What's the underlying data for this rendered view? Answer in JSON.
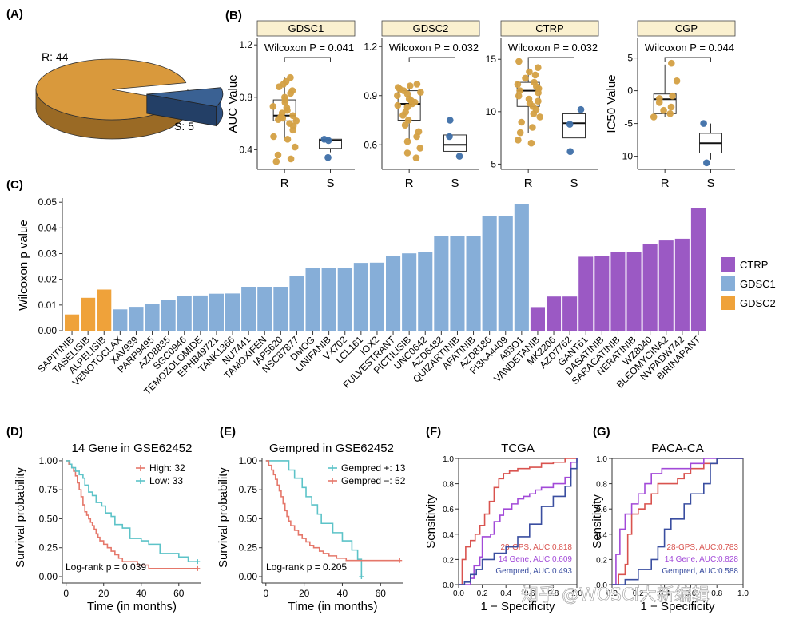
{
  "colors": {
    "R": "#D4A043",
    "S": "#3E6FA8",
    "CTRP": "#9B59C4",
    "GDSC1": "#86AED8",
    "GDSC2": "#EFA23A",
    "pie_R": "#D9993C",
    "pie_S": "#3A6193",
    "km_red": "#E5776A",
    "km_teal": "#5CC3C8",
    "roc_red": "#D9534F",
    "roc_purple": "#A24AD8",
    "roc_blue": "#3A4EA0",
    "strip": "#FAF0CF"
  },
  "panels": {
    "A": "(A)",
    "B": "(B)",
    "C": "(C)",
    "D": "(D)",
    "E": "(E)",
    "F": "(F)",
    "G": "(G)"
  },
  "watermark": "知乎 @WOSCI大新编辑",
  "chart_data": [
    {
      "id": "pie",
      "type": "pie",
      "slices": [
        {
          "label": "R: 44",
          "value": 44
        },
        {
          "label": "S: 5",
          "value": 5
        }
      ]
    },
    {
      "id": "gdsc1",
      "type": "box",
      "strip": "GDSC1",
      "ylabel": "AUC Value",
      "ylim": [
        0.25,
        1.25
      ],
      "yticks": [
        0.4,
        0.8,
        1.2
      ],
      "ytick_labels": [
        "0.4",
        "0.8",
        "1.2"
      ],
      "categories": [
        "R",
        "S"
      ],
      "pvalue": "Wilcoxon P = 0.041",
      "box": {
        "R": [
          0.48,
          0.62,
          0.66,
          0.78,
          0.95
        ],
        "S": [
          0.38,
          0.41,
          0.47,
          0.48,
          0.48
        ]
      },
      "points": {
        "R": [
          0.95,
          0.92,
          0.9,
          0.88,
          0.85,
          0.83,
          0.8,
          0.78,
          0.76,
          0.73,
          0.72,
          0.7,
          0.68,
          0.66,
          0.65,
          0.64,
          0.63,
          0.62,
          0.6,
          0.58,
          0.55,
          0.5,
          0.48,
          0.42,
          0.36,
          0.33,
          0.31
        ],
        "S": [
          0.48,
          0.47,
          0.34
        ]
      }
    },
    {
      "id": "gdsc2",
      "type": "box",
      "strip": "GDSC2",
      "ylabel": "",
      "ylim": [
        0.45,
        1.25
      ],
      "yticks": [
        0.6,
        0.9,
        1.2
      ],
      "ytick_labels": [
        "0.6",
        "0.9",
        "1.2"
      ],
      "categories": [
        "R",
        "S"
      ],
      "pvalue": "Wilcoxon P = 0.032",
      "box": {
        "R": [
          0.62,
          0.75,
          0.85,
          0.93,
          0.97
        ],
        "S": [
          0.53,
          0.56,
          0.6,
          0.66,
          0.75
        ]
      },
      "points": {
        "R": [
          0.97,
          0.96,
          0.95,
          0.94,
          0.93,
          0.92,
          0.91,
          0.9,
          0.88,
          0.87,
          0.86,
          0.85,
          0.84,
          0.83,
          0.8,
          0.78,
          0.75,
          0.72,
          0.68,
          0.65,
          0.62,
          0.58,
          0.55,
          0.52
        ],
        "S": [
          0.75,
          0.65,
          0.53
        ]
      }
    },
    {
      "id": "ctrp",
      "type": "box",
      "strip": "CTRP",
      "ylabel": "",
      "ylim": [
        4.5,
        17
      ],
      "yticks": [
        5,
        10,
        15
      ],
      "ytick_labels": [
        "5",
        "10",
        "15"
      ],
      "categories": [
        "R",
        "S"
      ],
      "pvalue": "Wilcoxon P = 0.032",
      "box": {
        "R": [
          8.0,
          10.5,
          12.0,
          12.8,
          14.8
        ],
        "S": [
          6.5,
          7.5,
          8.9,
          9.8,
          10.2
        ]
      },
      "points": {
        "R": [
          14.8,
          14.2,
          13.8,
          13.5,
          13.2,
          12.8,
          12.6,
          12.4,
          12.2,
          12.0,
          11.8,
          11.5,
          11.2,
          11.0,
          10.8,
          10.5,
          10.2,
          9.8,
          9.5,
          9.0,
          8.5,
          8.0,
          7.3,
          7.0
        ],
        "S": [
          10.2,
          8.8,
          6.2
        ]
      }
    },
    {
      "id": "cgp",
      "type": "box",
      "strip": "CGP",
      "ylabel": "IC50 Value",
      "ylim": [
        -12,
        8
      ],
      "yticks": [
        -10,
        -5,
        0,
        5
      ],
      "ytick_labels": [
        "-10",
        "-5",
        "0",
        "5"
      ],
      "categories": [
        "R",
        "S"
      ],
      "pvalue": "Wilcoxon P = 0.044",
      "box": {
        "R": [
          -4,
          -3.5,
          -1.3,
          -0.5,
          4
        ],
        "S": [
          -10.5,
          -9.5,
          -8,
          -6.5,
          -5
        ]
      },
      "points": {
        "R": [
          4.2,
          1.5,
          -0.8,
          -1.2,
          -1.8,
          -2.5,
          -3.0,
          -3.5,
          -4.0
        ],
        "S": [
          -5.0,
          -11.0
        ]
      }
    },
    {
      "id": "bars",
      "type": "bar",
      "ylabel": "Wilcoxon p value",
      "ylim": [
        0,
        0.051
      ],
      "yticks": [
        0,
        0.01,
        0.02,
        0.03,
        0.04,
        0.05
      ],
      "ytick_labels": [
        "0.00",
        "0.01",
        "0.02",
        "0.03",
        "0.04",
        "0.05"
      ],
      "legend": [
        "CTRP",
        "GDSC1",
        "GDSC2"
      ],
      "categories": [
        "SAPITINIB",
        "TASELISIB",
        "ALPELISIB",
        "VENOTOCLAX",
        "XAV939",
        "PARP9495",
        "AZD8835",
        "SGC0946",
        "TEMOZOLOMIDE",
        "EPHB49721",
        "TANK1366",
        "NU7441",
        "TAMOXIFEN",
        "IAP5620",
        "NSC87877",
        "DMOG",
        "LINIFANIB",
        "VX702",
        "LCL161",
        "IOX2",
        "FULVESTRANT",
        "PICTILISIB",
        "UNC0642",
        "AZD6482",
        "QUIZARTINIB",
        "AFATINIB",
        "AZD8186",
        "PI3KA4409",
        "A83O1",
        "VANDETANIB",
        "MK2206",
        "AZD7762",
        "GANT61",
        "DASATINIB",
        "SARACATINIB",
        "NERATINIB",
        "WZ8040",
        "BLEOMYCINA2",
        "NVPADW742",
        "BIRINAPANT"
      ],
      "values": [
        0.0063,
        0.0128,
        0.016,
        0.0083,
        0.0093,
        0.0103,
        0.0121,
        0.0136,
        0.0137,
        0.0144,
        0.0145,
        0.0171,
        0.0171,
        0.0171,
        0.0214,
        0.0245,
        0.0245,
        0.0245,
        0.0264,
        0.0265,
        0.0291,
        0.0301,
        0.0306,
        0.0367,
        0.0367,
        0.0367,
        0.0445,
        0.0445,
        0.0493,
        0.0092,
        0.0133,
        0.0133,
        0.0288,
        0.029,
        0.0306,
        0.0306,
        0.0336,
        0.0351,
        0.0358,
        0.0479
      ],
      "groups": [
        "GDSC2",
        "GDSC2",
        "GDSC2",
        "GDSC1",
        "GDSC1",
        "GDSC1",
        "GDSC1",
        "GDSC1",
        "GDSC1",
        "GDSC1",
        "GDSC1",
        "GDSC1",
        "GDSC1",
        "GDSC1",
        "GDSC1",
        "GDSC1",
        "GDSC1",
        "GDSC1",
        "GDSC1",
        "GDSC1",
        "GDSC1",
        "GDSC1",
        "GDSC1",
        "GDSC1",
        "GDSC1",
        "GDSC1",
        "GDSC1",
        "GDSC1",
        "GDSC1",
        "CTRP",
        "CTRP",
        "CTRP",
        "CTRP",
        "CTRP",
        "CTRP",
        "CTRP",
        "CTRP",
        "CTRP",
        "CTRP",
        "CTRP"
      ]
    },
    {
      "id": "kmD",
      "type": "line",
      "title": "14 Gene in GSE62452",
      "xlabel": "Time (in months)",
      "ylabel": "Survival probability",
      "xlim": [
        -2,
        72
      ],
      "ylim": [
        0,
        1.02
      ],
      "xticks": [
        0,
        20,
        40,
        60
      ],
      "xtick_labels": [
        "0",
        "20",
        "40",
        "60"
      ],
      "yticks": [
        0,
        0.25,
        0.5,
        0.75,
        1.0
      ],
      "ytick_labels": [
        "0.00",
        "0.25",
        "0.50",
        "0.75",
        "1.00"
      ],
      "annotation": "Log-rank p = 0.039",
      "series": [
        {
          "name": "High: 32",
          "color": "km_red",
          "x": [
            0,
            1.5,
            3,
            4,
            5,
            6,
            7,
            8,
            9,
            10,
            11,
            12,
            13,
            14,
            15,
            16,
            17,
            18,
            20,
            22,
            24,
            26,
            28,
            30,
            38,
            44,
            70
          ],
          "y": [
            1.0,
            0.97,
            0.94,
            0.91,
            0.87,
            0.81,
            0.75,
            0.69,
            0.62,
            0.56,
            0.53,
            0.5,
            0.47,
            0.44,
            0.41,
            0.37,
            0.34,
            0.31,
            0.28,
            0.25,
            0.22,
            0.19,
            0.16,
            0.13,
            0.1,
            0.07,
            0.07
          ]
        },
        {
          "name": "Low: 33",
          "color": "km_teal",
          "x": [
            0,
            2,
            3,
            5,
            7,
            9,
            10,
            12,
            14,
            16,
            19,
            21,
            24,
            26,
            30,
            34,
            40,
            44,
            50,
            60,
            65,
            70
          ],
          "y": [
            1.0,
            0.97,
            0.94,
            0.91,
            0.88,
            0.85,
            0.79,
            0.73,
            0.7,
            0.64,
            0.61,
            0.55,
            0.52,
            0.45,
            0.42,
            0.33,
            0.31,
            0.28,
            0.2,
            0.17,
            0.13,
            0.13
          ]
        }
      ]
    },
    {
      "id": "kmE",
      "type": "line",
      "title": "Gempred in GSE62452",
      "xlabel": "Time (in months)",
      "ylabel": "Survival probability",
      "xlim": [
        -2,
        72
      ],
      "ylim": [
        0,
        1.02
      ],
      "xticks": [
        0,
        20,
        40,
        60
      ],
      "xtick_labels": [
        "0",
        "20",
        "40",
        "60"
      ],
      "yticks": [
        0,
        0.25,
        0.5,
        0.75,
        1.0
      ],
      "ytick_labels": [
        "0.00",
        "0.25",
        "0.50",
        "0.75",
        "1.00"
      ],
      "annotation": "Log-rank p = 0.205",
      "series": [
        {
          "name": "Gempred +: 13",
          "color": "km_teal",
          "x": [
            0,
            12,
            15,
            19,
            21,
            24,
            27,
            29,
            35,
            40,
            45,
            48,
            50
          ],
          "y": [
            1.0,
            0.92,
            0.85,
            0.77,
            0.69,
            0.62,
            0.54,
            0.46,
            0.38,
            0.31,
            0.23,
            0.15,
            0.0
          ]
        },
        {
          "name": "Gempred −: 52",
          "color": "km_red",
          "x": [
            0,
            1.5,
            3,
            4,
            5,
            6,
            7,
            8,
            9,
            10,
            11,
            12,
            13,
            15,
            17,
            19,
            21,
            23,
            25,
            28,
            30,
            33,
            37,
            42,
            46,
            70
          ],
          "y": [
            1.0,
            0.96,
            0.92,
            0.88,
            0.84,
            0.79,
            0.74,
            0.69,
            0.63,
            0.57,
            0.52,
            0.48,
            0.44,
            0.4,
            0.36,
            0.33,
            0.3,
            0.27,
            0.25,
            0.22,
            0.2,
            0.18,
            0.16,
            0.14,
            0.14,
            0.14
          ]
        }
      ]
    },
    {
      "id": "rocF",
      "type": "line",
      "title": "TCGA",
      "xlabel": "1 − Specificity",
      "ylabel": "Sensitivity",
      "xlim": [
        0,
        1
      ],
      "ylim": [
        0,
        1
      ],
      "xticks": [
        0,
        0.2,
        0.4,
        0.6,
        0.8,
        1.0
      ],
      "xtick_labels": [
        "0.0",
        "0.2",
        "0.4",
        "0.6",
        "0.8",
        "1.0"
      ],
      "yticks": [
        0,
        0.2,
        0.4,
        0.6,
        0.8,
        1.0
      ],
      "ytick_labels": [
        "0.0",
        "0.2",
        "0.4",
        "0.6",
        "0.8",
        "1.0"
      ],
      "series": [
        {
          "name": "28-GPS, AUC:0.818",
          "color": "roc_red",
          "x": [
            0,
            0.03,
            0.06,
            0.1,
            0.14,
            0.18,
            0.22,
            0.26,
            0.3,
            0.34,
            0.38,
            0.43,
            0.5,
            0.6,
            0.7,
            0.8,
            0.9,
            1.0
          ],
          "y": [
            0,
            0.2,
            0.3,
            0.35,
            0.4,
            0.47,
            0.56,
            0.66,
            0.77,
            0.84,
            0.88,
            0.9,
            0.92,
            0.93,
            0.96,
            0.97,
            1.0,
            1.0
          ]
        },
        {
          "name": "14 Gene, AUC:0.609",
          "color": "roc_purple",
          "x": [
            0,
            0.1,
            0.13,
            0.18,
            0.2,
            0.27,
            0.3,
            0.35,
            0.38,
            0.45,
            0.5,
            0.55,
            0.6,
            0.65,
            0.7,
            0.8,
            0.9,
            0.95,
            1.0
          ],
          "y": [
            0,
            0.05,
            0.15,
            0.22,
            0.38,
            0.4,
            0.5,
            0.55,
            0.6,
            0.64,
            0.68,
            0.7,
            0.72,
            0.75,
            0.77,
            0.8,
            0.85,
            0.97,
            1.0
          ]
        },
        {
          "name": "Gempred, AUC:0.493",
          "color": "roc_blue",
          "x": [
            0,
            0.05,
            0.1,
            0.15,
            0.2,
            0.3,
            0.4,
            0.5,
            0.6,
            0.7,
            0.8,
            0.9,
            0.95,
            1.0
          ],
          "y": [
            0,
            0.02,
            0.08,
            0.12,
            0.2,
            0.25,
            0.3,
            0.38,
            0.48,
            0.62,
            0.7,
            0.78,
            0.92,
            1.0
          ]
        }
      ]
    },
    {
      "id": "rocG",
      "type": "line",
      "title": "PACA-CA",
      "xlabel": "1 − Specificity",
      "ylabel": "Sensitivity",
      "xlim": [
        0,
        1
      ],
      "ylim": [
        0,
        1
      ],
      "xticks": [
        0,
        0.2,
        0.4,
        0.6,
        0.8,
        1.0
      ],
      "xtick_labels": [
        "0.0",
        "0.2",
        "0.4",
        "0.6",
        "0.8",
        "1.0"
      ],
      "yticks": [
        0,
        0.2,
        0.4,
        0.6,
        0.8,
        1.0
      ],
      "ytick_labels": [
        "0.0",
        "0.2",
        "0.4",
        "0.6",
        "0.8",
        "1.0"
      ],
      "series": [
        {
          "name": "28-GPS, AUC:0.783",
          "color": "roc_red",
          "x": [
            0,
            0.05,
            0.1,
            0.12,
            0.15,
            0.2,
            0.25,
            0.3,
            0.35,
            0.5,
            0.55,
            0.6,
            0.7,
            0.8,
            1.0
          ],
          "y": [
            0,
            0.08,
            0.16,
            0.4,
            0.56,
            0.6,
            0.64,
            0.72,
            0.8,
            0.84,
            0.88,
            0.92,
            0.96,
            1.0,
            1.0
          ]
        },
        {
          "name": "14 Gene, AUC:0.828",
          "color": "roc_purple",
          "x": [
            0,
            0.03,
            0.06,
            0.1,
            0.15,
            0.2,
            0.25,
            0.3,
            0.38,
            0.45,
            0.55,
            0.6,
            0.7,
            1.0
          ],
          "y": [
            0,
            0.24,
            0.44,
            0.56,
            0.64,
            0.72,
            0.8,
            0.88,
            0.92,
            0.92,
            0.92,
            0.96,
            1.0,
            1.0
          ]
        },
        {
          "name": "Gempred, AUC:0.588",
          "color": "roc_blue",
          "x": [
            0,
            0.1,
            0.2,
            0.3,
            0.35,
            0.4,
            0.45,
            0.55,
            0.6,
            0.7,
            0.75,
            0.8,
            1.0
          ],
          "y": [
            0,
            0.04,
            0.12,
            0.2,
            0.3,
            0.44,
            0.52,
            0.64,
            0.72,
            0.8,
            0.96,
            1.0,
            1.0
          ]
        }
      ]
    }
  ]
}
